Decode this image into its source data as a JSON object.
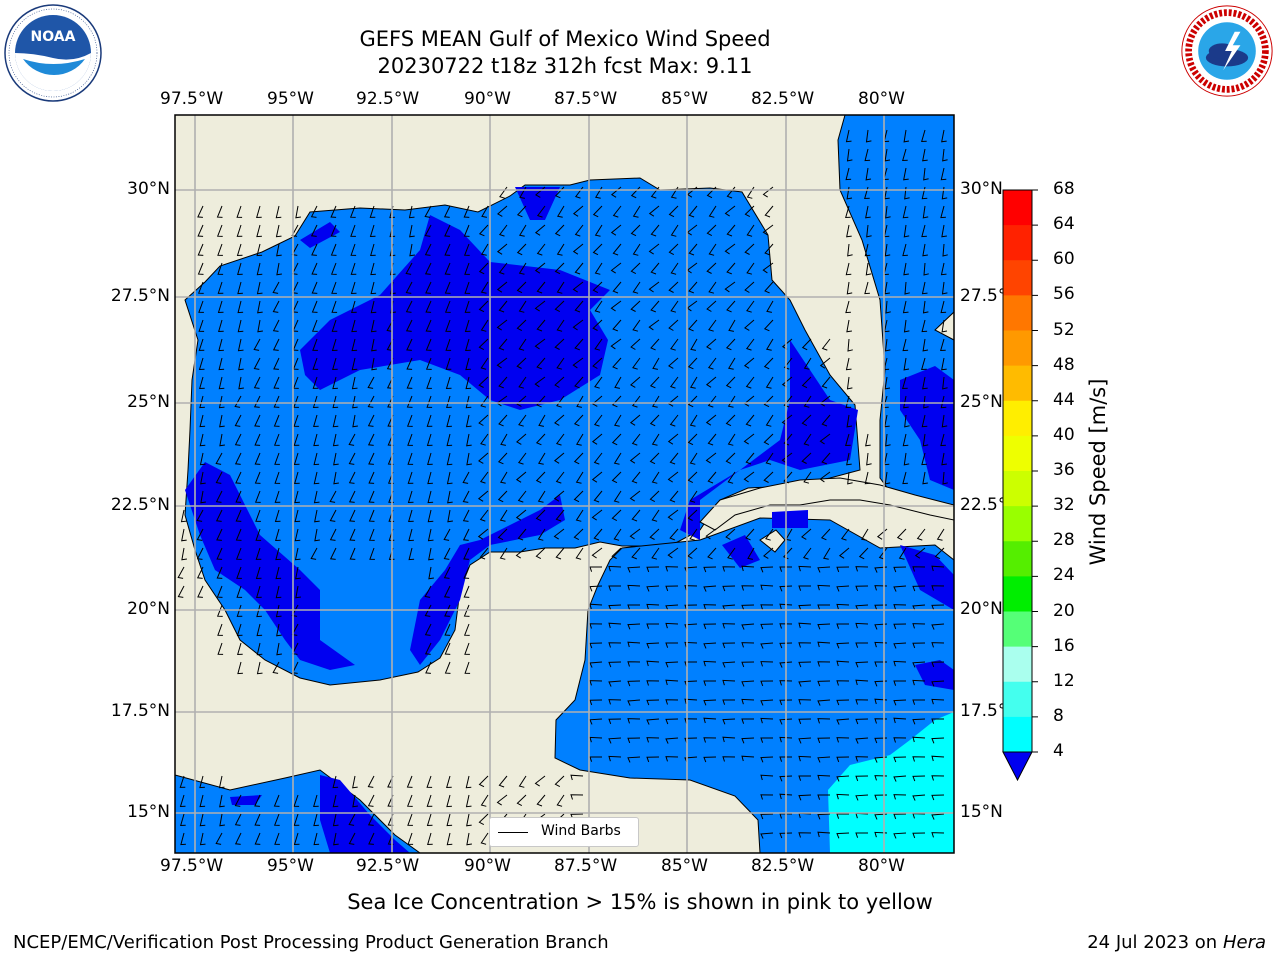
{
  "title": {
    "line1": "GEFS MEAN Gulf of Mexico Wind Speed",
    "line2": "20230722 t18z 312h fcst   Max: 9.11"
  },
  "logos": {
    "left": {
      "name": "NOAA",
      "ring_text": "NATIONAL OCEANIC AND ATMOSPHERIC ADMINISTRATION · U.S. DEPARTMENT OF COMMERCE"
    },
    "right": {
      "name": "National Weather Service",
      "ring_text": "NATIONAL WEATHER SERVICE"
    }
  },
  "map": {
    "lon_ticks": [
      "97.5°W",
      "95°W",
      "92.5°W",
      "90°W",
      "87.5°W",
      "85°W",
      "82.5°W",
      "80°W"
    ],
    "lat_ticks": [
      "30°N",
      "27.5°N",
      "25°N",
      "22.5°N",
      "20°N",
      "17.5°N",
      "15°N"
    ],
    "lon_range": [
      -98,
      -78.3
    ],
    "lat_range": [
      14,
      31.8
    ],
    "colors": {
      "land": "#eeeddc",
      "ocean_4_8": "#0080ff",
      "ocean_below_4": "#0000f0",
      "ocean_8_12": "#00ffff",
      "grid": "#b0b0b0"
    }
  },
  "legend": {
    "label": "Wind Barbs"
  },
  "colorbar": {
    "label": "Wind Speed [m/s]",
    "ticks": [
      "68",
      "64",
      "60",
      "56",
      "52",
      "48",
      "44",
      "40",
      "36",
      "32",
      "28",
      "24",
      "20",
      "16",
      "12",
      "8",
      "4"
    ],
    "colors": [
      "#ff0000",
      "#ff2200",
      "#ff4400",
      "#ff7700",
      "#ff9900",
      "#ffbb00",
      "#ffee00",
      "#eeff00",
      "#ccff00",
      "#99ff00",
      "#55ee00",
      "#00ee00",
      "#55ff77",
      "#aaffee",
      "#44ffee",
      "#00ffff",
      "#0080ff"
    ],
    "underflow_color": "#0000f0"
  },
  "note": "Sea Ice Concentration > 15% is shown in pink to yellow",
  "footer": {
    "left": "NCEP/EMC/Verification Post Processing Product Generation Branch",
    "right_date": "24 Jul 2023 on ",
    "right_machine": "Hera"
  }
}
